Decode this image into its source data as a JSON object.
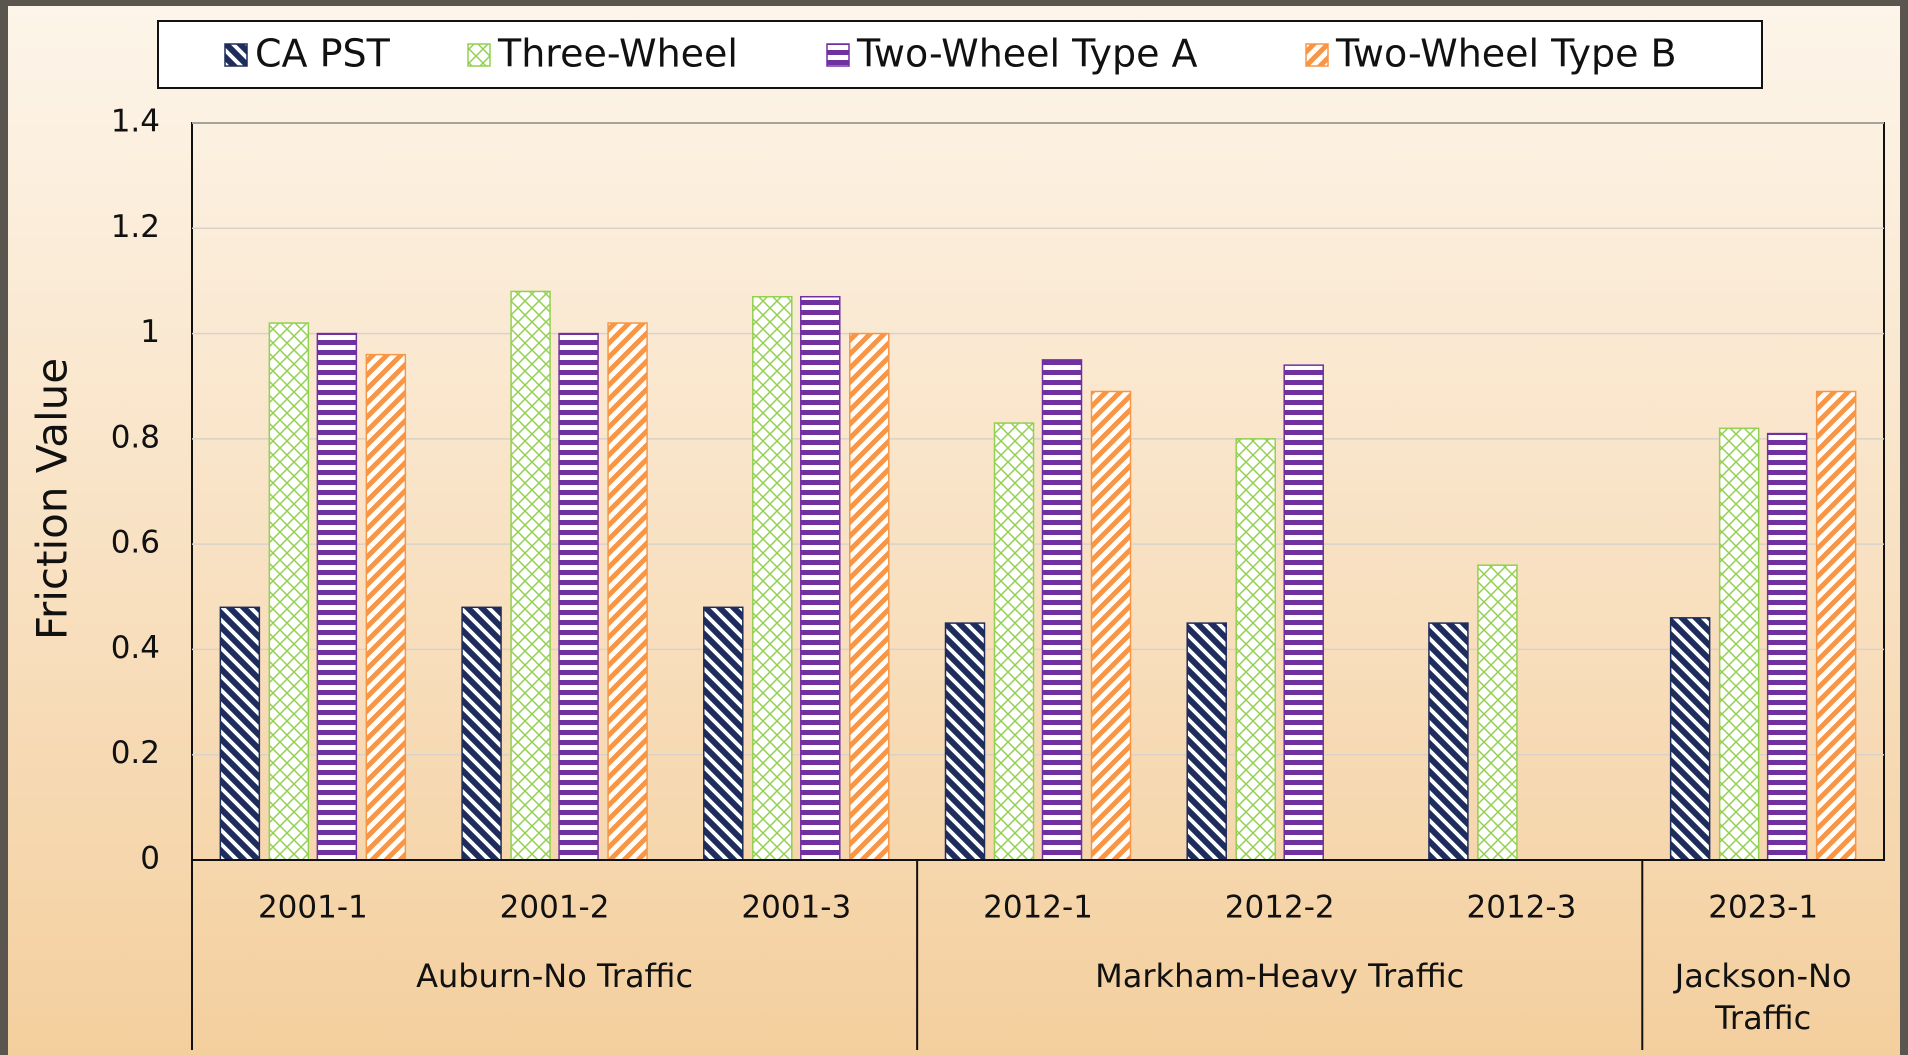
{
  "chart_data": {
    "type": "bar",
    "y_label": "Friction Value",
    "categories": [
      "2001-1",
      "2001-2",
      "2001-3",
      "2012-1",
      "2012-2",
      "2012-3",
      "2023-1"
    ],
    "category_groups": [
      "Auburn-No Traffic",
      "Auburn-No Traffic",
      "Auburn-No Traffic",
      "Markham-Heavy Traffic",
      "Markham-Heavy Traffic",
      "Markham-Heavy Traffic",
      "Jackson-No Traffic"
    ],
    "series": [
      {
        "name": "CA PST",
        "color": "#1f2d5c",
        "values": [
          0.48,
          0.48,
          0.48,
          0.45,
          0.45,
          0.45,
          0.46
        ]
      },
      {
        "name": "Three-Wheel",
        "color": "#92d050",
        "values": [
          1.02,
          1.08,
          1.07,
          0.83,
          0.8,
          0.56,
          0.82
        ]
      },
      {
        "name": "Two-Wheel Type A",
        "color": "#7030a0",
        "values": [
          1.0,
          1.0,
          1.07,
          0.95,
          0.94,
          null,
          0.81
        ]
      },
      {
        "name": "Two-Wheel Type B",
        "color": "#f79646",
        "values": [
          0.96,
          1.02,
          1.0,
          0.89,
          null,
          null,
          0.89
        ]
      }
    ],
    "ylim": [
      0,
      1.4
    ],
    "yticks": [
      0,
      0.2,
      0.4,
      0.6,
      0.8,
      1,
      1.2,
      1.4
    ],
    "grid": true,
    "legend": "top"
  }
}
